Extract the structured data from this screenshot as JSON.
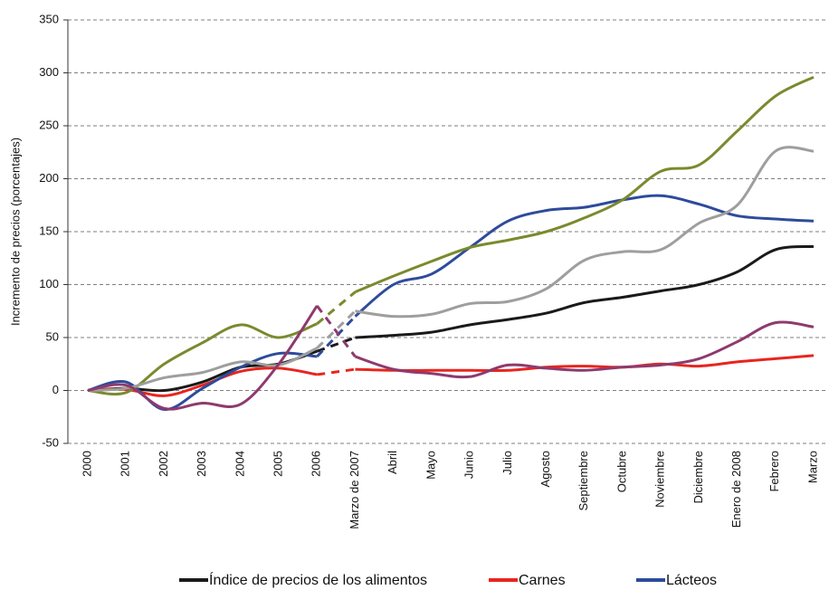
{
  "chart_data": {
    "type": "line",
    "y_label": "Incremento de precios (porcentajes)",
    "categories": [
      "2000",
      "2001",
      "2002",
      "2003",
      "2004",
      "2005",
      "2006",
      "Marzo de 2007",
      "Abril",
      "Mayo",
      "Junio",
      "Julio",
      "Agosto",
      "Septiembre",
      "Octubre",
      "Noviembre",
      "Diciembre",
      "Enero de 2008",
      "Febrero",
      "Marzo"
    ],
    "series": [
      {
        "name": "Índice de precios de los alimentos",
        "color": "#1a1a1a",
        "values": [
          0,
          2,
          0,
          8,
          22,
          25,
          37,
          50,
          52,
          55,
          62,
          67,
          73,
          83,
          88,
          94,
          100,
          112,
          133,
          136
        ]
      },
      {
        "name": "Carnes",
        "color": "#e8251f",
        "values": [
          0,
          1,
          -5,
          5,
          18,
          21,
          15,
          20,
          19,
          19,
          19,
          19,
          22,
          23,
          22,
          25,
          23,
          27,
          30,
          33
        ]
      },
      {
        "name": "Lácteos",
        "color": "#2e4b9b",
        "values": [
          0,
          8,
          -18,
          2,
          22,
          35,
          32,
          70,
          100,
          110,
          135,
          160,
          170,
          173,
          180,
          184,
          176,
          165,
          162,
          160
        ]
      },
      {
        "color": "#7a8a2e",
        "values": [
          0,
          -2,
          25,
          45,
          62,
          50,
          63,
          93,
          108,
          122,
          135,
          142,
          150,
          163,
          180,
          207,
          213,
          245,
          278,
          296
        ]
      },
      {
        "color": "#9e9e9e",
        "values": [
          0,
          2,
          12,
          17,
          27,
          24,
          40,
          75,
          70,
          72,
          82,
          84,
          96,
          123,
          131,
          133,
          158,
          175,
          226,
          226
        ]
      },
      {
        "color": "#8e3a6e",
        "values": [
          0,
          5,
          -17,
          -12,
          -13,
          25,
          80,
          32,
          20,
          16,
          13,
          24,
          21,
          19,
          22,
          24,
          30,
          46,
          64,
          60
        ]
      }
    ],
    "ylim": [
      -50,
      350
    ],
    "yticks": [
      -50,
      0,
      50,
      100,
      150,
      200,
      250,
      300,
      350
    ],
    "grid": true
  }
}
